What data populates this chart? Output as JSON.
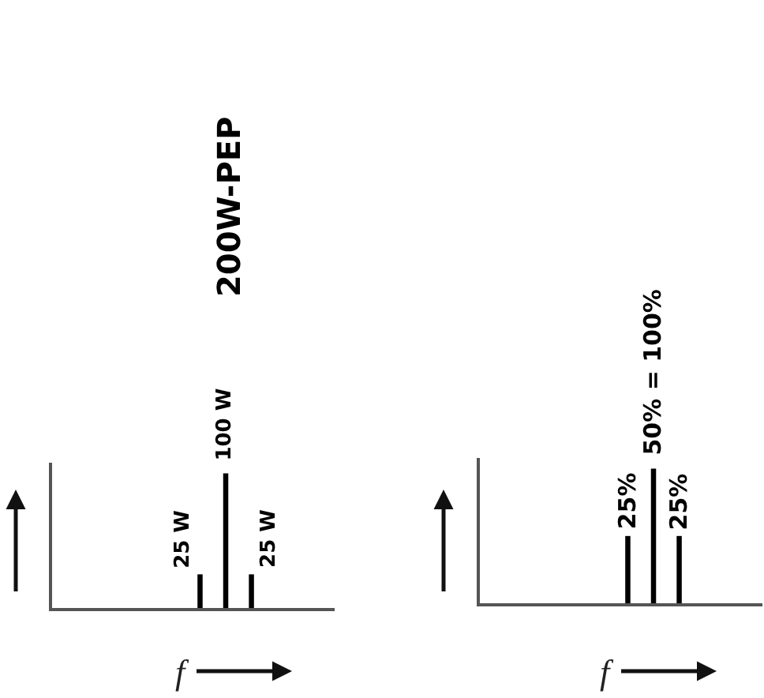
{
  "chart_data": [
    {
      "type": "bar",
      "title": "200W-PEP",
      "xlabel": "f",
      "categories": [
        null,
        null,
        null
      ],
      "values": [
        25,
        100,
        25
      ],
      "value_labels": [
        "25 W",
        "100 W",
        "25 W"
      ],
      "color": "#000000"
    },
    {
      "type": "bar",
      "xlabel": "f",
      "categories": [
        null,
        null,
        null
      ],
      "values": [
        25,
        50,
        25
      ],
      "value_labels": [
        "25%",
        "50% = 100%",
        "25%"
      ],
      "color": "#000000"
    }
  ]
}
